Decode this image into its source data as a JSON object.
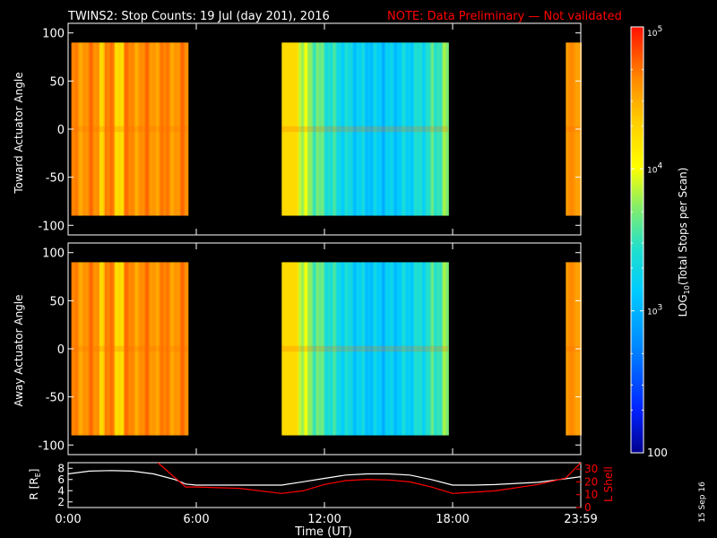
{
  "title": {
    "main": "TWINS2: Stop Counts: 19 Jul (day 201), 2016",
    "note": "NOTE: Data Preliminary — Not validated",
    "note_color": "#ff0000"
  },
  "side_stamp": "15 Sep 16",
  "colorbar": {
    "label": "LOG10(Total Stops per Scan)",
    "label_prefix": "LOG",
    "label_sub": "10",
    "label_suffix": "(Total Stops per Scan)",
    "ticks": [
      {
        "base": "10",
        "exp": "5",
        "value": 100000
      },
      {
        "base": "10",
        "exp": "4",
        "value": 10000
      },
      {
        "base": "10",
        "exp": "3",
        "value": 1000
      },
      {
        "base": "100",
        "exp": "",
        "value": 100
      }
    ],
    "scale": "log",
    "range": [
      100,
      100000
    ]
  },
  "chart_data": [
    {
      "type": "heatmap",
      "ylabel": "Toward Actuator Angle",
      "ylim": [
        -110,
        110
      ],
      "yticks": [
        "100",
        "50",
        "0",
        "-50",
        "-100"
      ],
      "angle_range": [
        -90,
        90
      ],
      "x_hours": [
        0,
        24
      ],
      "segments": [
        {
          "start": "0:15",
          "end": "5:35",
          "level": "high (~3-5 x 10^4)"
        },
        {
          "start": "10:00",
          "end": "17:45",
          "level": "mixed, minimum near 14:30 (~10^2-10^3)"
        },
        {
          "start": "23:30",
          "end": "23:59",
          "level": "high (~3 x 10^4)"
        }
      ]
    },
    {
      "type": "heatmap",
      "ylabel": "Away Actuator Angle",
      "ylim": [
        -110,
        110
      ],
      "yticks": [
        "100",
        "50",
        "0",
        "-50",
        "-100"
      ],
      "angle_range": [
        -90,
        90
      ],
      "x_hours": [
        0,
        24
      ],
      "segments": [
        {
          "start": "0:15",
          "end": "5:35",
          "level": "high (~3-5 x 10^4)"
        },
        {
          "start": "10:00",
          "end": "17:45",
          "level": "mixed, minimum near 14:30 (~10^2-10^3)"
        },
        {
          "start": "23:30",
          "end": "23:59",
          "level": "high (~3 x 10^4)"
        }
      ]
    },
    {
      "type": "line",
      "xlabel": "Time (UT)",
      "xticks": [
        "0:00",
        "6:00",
        "12:00",
        "18:00",
        "23:59"
      ],
      "x_hours": [
        0,
        6,
        12,
        18,
        24
      ],
      "left_axis": {
        "label": "R [RE]",
        "label_main": "R [R",
        "label_sub": "E",
        "label_end": "]",
        "ticks": [
          "8",
          "6",
          "4",
          "2"
        ],
        "ylim": [
          1,
          9
        ]
      },
      "right_axis": {
        "label": "L Shell",
        "ticks": [
          "30",
          "20",
          "10",
          "0"
        ],
        "ylim": [
          0,
          35
        ],
        "color": "#ff0000"
      },
      "series": [
        {
          "color": "#ffffff",
          "axis": "left",
          "x": [
            0,
            1,
            2,
            3,
            4,
            5,
            5.5,
            6,
            8,
            10,
            11,
            12,
            13,
            14,
            15,
            16,
            17,
            18,
            19,
            20,
            21,
            22,
            23,
            24
          ],
          "y": [
            7.0,
            7.5,
            7.6,
            7.5,
            7.0,
            6.0,
            5.2,
            5.0,
            5.0,
            5.0,
            5.6,
            6.2,
            6.8,
            7.0,
            7.0,
            6.8,
            6.0,
            5.0,
            5.0,
            5.1,
            5.3,
            5.5,
            6.0,
            6.5
          ]
        },
        {
          "color": "#ff0000",
          "axis": "right",
          "x": [
            4.2,
            5.5,
            6,
            8,
            10,
            11,
            12,
            13,
            14,
            15,
            16,
            17,
            18,
            20,
            22,
            23.3,
            24
          ],
          "y": [
            35,
            16,
            16,
            15,
            11,
            13,
            18,
            21,
            22,
            21.5,
            20,
            16,
            11,
            13,
            18,
            23,
            35
          ]
        }
      ]
    }
  ]
}
